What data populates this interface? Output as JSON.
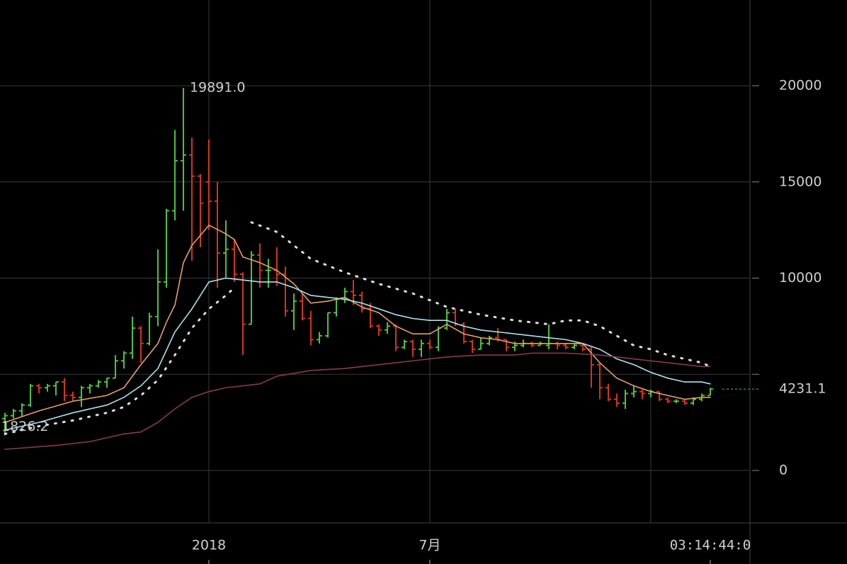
{
  "chart_data": {
    "type": "ohlc",
    "up_color": "#4cc63a",
    "down_color": "#d9341c",
    "xlim": [
      -0.58,
      87.67
    ],
    "ylim": [
      -2726,
      24457
    ],
    "yticks": [
      0,
      10000,
      15000,
      20000
    ],
    "ygrid": [
      0,
      5000,
      10000,
      15000,
      20000
    ],
    "xticks": [
      {
        "value": 24,
        "label": "2018"
      },
      {
        "value": 50,
        "label": "7月"
      }
    ],
    "xgrid": [
      24,
      50,
      76
    ],
    "countdown": {
      "value": 83,
      "label": "03:14:44:0"
    },
    "last_price": {
      "value": 4231.1,
      "label": "4231.1"
    },
    "high_label": {
      "index": 21,
      "value": 19891,
      "label": "19891.0"
    },
    "low_label": {
      "index": 0,
      "value": 1826.2,
      "label": "1826.2"
    },
    "ohlc": [
      [
        2700,
        3000,
        1826.2,
        2850
      ],
      [
        2850,
        3200,
        2700,
        3100
      ],
      [
        3100,
        3500,
        2800,
        3400
      ],
      [
        3400,
        4500,
        3300,
        4400
      ],
      [
        4400,
        4500,
        4000,
        4300
      ],
      [
        4300,
        4500,
        4100,
        4400
      ],
      [
        4400,
        4600,
        3900,
        4600
      ],
      [
        4600,
        4800,
        3600,
        3900
      ],
      [
        3900,
        4100,
        3600,
        3800
      ],
      [
        3800,
        4400,
        3300,
        4300
      ],
      [
        4300,
        4500,
        4000,
        4400
      ],
      [
        4400,
        4700,
        4300,
        4600
      ],
      [
        4600,
        4800,
        4300,
        4800
      ],
      [
        4800,
        6000,
        4800,
        5700
      ],
      [
        5700,
        6200,
        5300,
        6100
      ],
      [
        6100,
        8000,
        5800,
        7400
      ],
      [
        7400,
        7500,
        5600,
        6600
      ],
      [
        6600,
        8200,
        6500,
        8000
      ],
      [
        8000,
        11500,
        7500,
        9800
      ],
      [
        9800,
        13600,
        9500,
        13500
      ],
      [
        13500,
        17700,
        13000,
        16100
      ],
      [
        16100,
        19891,
        13500,
        16400
      ],
      [
        16400,
        17300,
        10900,
        15300
      ],
      [
        15300,
        15400,
        11600,
        13900
      ],
      [
        15000,
        17200,
        12500,
        14000
      ],
      [
        14000,
        15000,
        9500,
        11300
      ],
      [
        11300,
        13000,
        10000,
        11500
      ],
      [
        11500,
        12000,
        9800,
        10200
      ],
      [
        10200,
        10300,
        6000,
        7600
      ],
      [
        7600,
        11400,
        7600,
        11200
      ],
      [
        11200,
        11800,
        9500,
        10400
      ],
      [
        10400,
        11000,
        9500,
        10400
      ],
      [
        10400,
        11600,
        9600,
        10200
      ],
      [
        10200,
        10600,
        8000,
        8300
      ],
      [
        8300,
        9200,
        7300,
        8800
      ],
      [
        8800,
        9200,
        7800,
        7900
      ],
      [
        7900,
        8300,
        6500,
        6800
      ],
      [
        6800,
        7200,
        6600,
        7000
      ],
      [
        7000,
        8200,
        6900,
        8200
      ],
      [
        8200,
        9000,
        8000,
        8900
      ],
      [
        8900,
        9500,
        8700,
        9300
      ],
      [
        9300,
        9900,
        8600,
        9100
      ],
      [
        9100,
        9300,
        8200,
        8400
      ],
      [
        8400,
        8700,
        7400,
        7500
      ],
      [
        7500,
        7600,
        7000,
        7300
      ],
      [
        7300,
        7700,
        7100,
        7500
      ],
      [
        7500,
        7600,
        6200,
        6400
      ],
      [
        6400,
        6800,
        6300,
        6700
      ],
      [
        6700,
        6800,
        5900,
        6300
      ],
      [
        6300,
        6800,
        5900,
        6600
      ],
      [
        6600,
        6800,
        6300,
        6400
      ],
      [
        6400,
        7500,
        6200,
        7400
      ],
      [
        7400,
        8400,
        7300,
        8200
      ],
      [
        8200,
        8400,
        7500,
        7600
      ],
      [
        7600,
        7700,
        6600,
        6700
      ],
      [
        6700,
        6800,
        6100,
        6300
      ],
      [
        6300,
        6900,
        6300,
        6600
      ],
      [
        6600,
        7000,
        6500,
        6900
      ],
      [
        6900,
        7400,
        6700,
        6800
      ],
      [
        6800,
        6800,
        6200,
        6400
      ],
      [
        6400,
        6700,
        6200,
        6500
      ],
      [
        6500,
        6800,
        6400,
        6600
      ],
      [
        6600,
        6700,
        6400,
        6500
      ],
      [
        6500,
        6700,
        6500,
        6600
      ],
      [
        6500,
        7600,
        6300,
        6600
      ],
      [
        6600,
        6700,
        6300,
        6500
      ],
      [
        6500,
        6600,
        6300,
        6400
      ],
      [
        6400,
        6600,
        6300,
        6500
      ],
      [
        6500,
        6600,
        6200,
        6300
      ],
      [
        6300,
        6400,
        4300,
        5500
      ],
      [
        5500,
        5600,
        3700,
        4300
      ],
      [
        4300,
        4500,
        3600,
        3700
      ],
      [
        3700,
        4000,
        3300,
        3500
      ],
      [
        3500,
        4200,
        3200,
        4000
      ],
      [
        4000,
        4400,
        3800,
        4100
      ],
      [
        4100,
        4200,
        3700,
        4000
      ],
      [
        4000,
        4200,
        3800,
        4100
      ],
      [
        4100,
        4100,
        3600,
        3700
      ],
      [
        3700,
        3800,
        3500,
        3600
      ],
      [
        3600,
        3700,
        3500,
        3600
      ],
      [
        3600,
        3700,
        3400,
        3500
      ],
      [
        3500,
        3800,
        3400,
        3700
      ],
      [
        3700,
        4000,
        3600,
        3900
      ],
      [
        3900,
        4300,
        3900,
        4231.1
      ]
    ],
    "lines": [
      {
        "color": "#e8a060",
        "style": "solid",
        "x": [
          0,
          4,
          8,
          12,
          14,
          16,
          18,
          19,
          20,
          21,
          22,
          24,
          26,
          27,
          28,
          30,
          32,
          34,
          36,
          38,
          40,
          42,
          44,
          46,
          48,
          50,
          52,
          54,
          56,
          58,
          60,
          62,
          64,
          66,
          68,
          70,
          72,
          74,
          76,
          78,
          80,
          82,
          83
        ],
        "values": [
          2500,
          3100,
          3600,
          3900,
          4300,
          5500,
          6600,
          7700,
          8600,
          10800,
          11700,
          12750,
          12300,
          12000,
          11100,
          10800,
          10400,
          9700,
          8700,
          8800,
          9000,
          8500,
          8200,
          7500,
          7100,
          7100,
          7600,
          7100,
          6900,
          6800,
          6600,
          6600,
          6600,
          6600,
          6600,
          5600,
          4800,
          4400,
          4100,
          3900,
          3700,
          3800,
          3800
        ]
      },
      {
        "color": "#a8e4f0",
        "style": "solid",
        "x": [
          0,
          4,
          8,
          12,
          14,
          16,
          18,
          20,
          22,
          24,
          26,
          28,
          30,
          32,
          34,
          36,
          38,
          40,
          42,
          44,
          46,
          48,
          50,
          52,
          54,
          56,
          58,
          60,
          62,
          64,
          66,
          68,
          70,
          72,
          74,
          76,
          78,
          80,
          82,
          83
        ],
        "values": [
          2100,
          2500,
          3000,
          3400,
          3800,
          4400,
          5300,
          7200,
          8400,
          9800,
          10000,
          9900,
          9800,
          9800,
          9500,
          9100,
          9000,
          8900,
          8700,
          8400,
          8100,
          7900,
          7800,
          7800,
          7500,
          7300,
          7200,
          7100,
          7000,
          6900,
          6800,
          6600,
          6300,
          5800,
          5500,
          5100,
          4800,
          4600,
          4600,
          4500
        ]
      },
      {
        "color": "#8a3a50",
        "style": "solid",
        "x": [
          0,
          6,
          10,
          14,
          16,
          18,
          20,
          22,
          24,
          26,
          30,
          32,
          36,
          40,
          44,
          48,
          52,
          56,
          60,
          62,
          66,
          70,
          72,
          74,
          76,
          78,
          80,
          82,
          83
        ],
        "values": [
          1100,
          1300,
          1500,
          1900,
          2000,
          2500,
          3200,
          3800,
          4100,
          4300,
          4500,
          4900,
          5200,
          5300,
          5500,
          5700,
          5900,
          6000,
          6000,
          6100,
          6100,
          6000,
          5900,
          5800,
          5700,
          5600,
          5500,
          5400,
          5400
        ]
      },
      {
        "color": "#dddddd",
        "style": "dotted",
        "x": [
          0,
          4,
          8,
          12,
          14,
          16,
          18,
          20,
          22,
          24,
          26,
          27,
          28,
          29,
          32,
          36,
          40,
          44,
          48,
          52,
          56,
          60,
          64,
          66,
          68,
          70,
          72,
          74,
          76,
          78,
          80,
          82,
          83
        ],
        "values": [
          1900,
          2300,
          2600,
          3000,
          3300,
          3900,
          4700,
          6000,
          7400,
          8400,
          9100,
          9500,
          null,
          12900,
          12400,
          11000,
          10300,
          9700,
          9200,
          8500,
          8100,
          7800,
          7600,
          7800,
          7800,
          7500,
          7000,
          6500,
          6300,
          6000,
          5800,
          5600,
          5400
        ]
      }
    ]
  }
}
